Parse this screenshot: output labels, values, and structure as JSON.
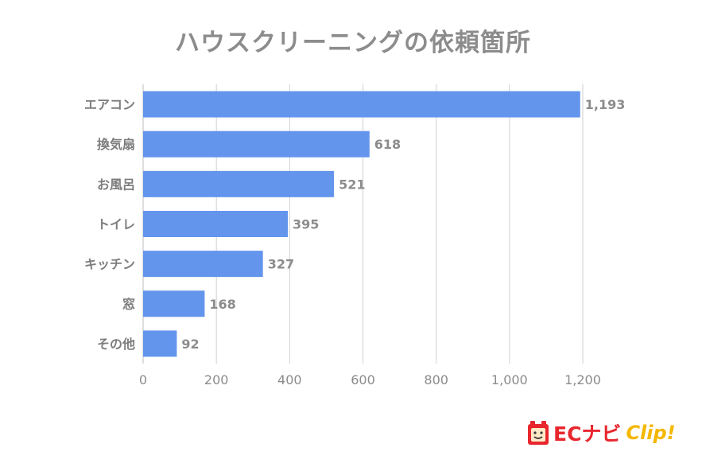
{
  "chart_data": {
    "type": "bar",
    "orientation": "horizontal",
    "title": "ハウスクリーニングの依頼箇所",
    "categories": [
      "エアコン",
      "換気扇",
      "お風呂",
      "トイレ",
      "キッチン",
      "窓",
      "その他"
    ],
    "values": [
      1193,
      618,
      521,
      395,
      327,
      168,
      92
    ],
    "value_labels": [
      "1,193",
      "618",
      "521",
      "395",
      "327",
      "168",
      "92"
    ],
    "xlim": [
      0,
      1200
    ],
    "x_ticks": [
      0,
      200,
      400,
      600,
      800,
      1000,
      1200
    ],
    "x_tick_labels": [
      "0",
      "200",
      "400",
      "600",
      "800",
      "1,000",
      "1,200"
    ],
    "grid": "vertical",
    "legend": "none",
    "bar_color": "#6495ed"
  },
  "logo": {
    "text_ec": "ECナビ",
    "text_clip": "Clip!",
    "primary_color": "#e8262d",
    "accent_color": "#f5b700"
  }
}
